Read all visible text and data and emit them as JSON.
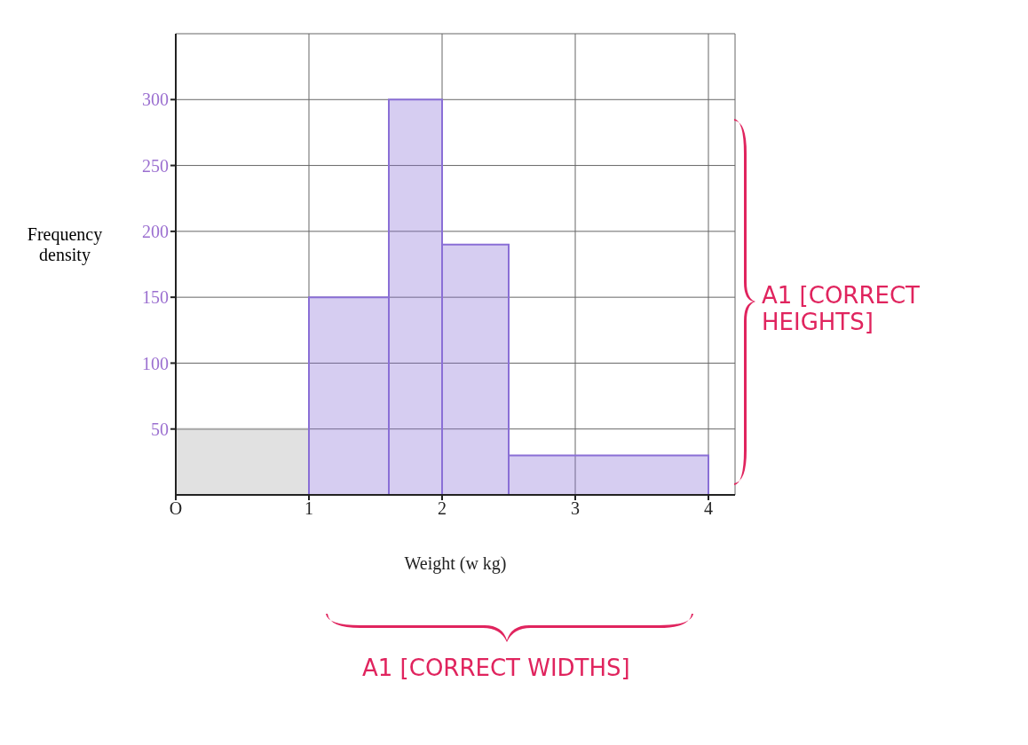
{
  "chart_data": {
    "type": "histogram",
    "xlabel": "Weight (w kg)",
    "ylabel": "Frequency density",
    "bins": [
      0,
      1,
      1.6,
      2,
      2.5,
      4
    ],
    "values": [
      50,
      150,
      300,
      190,
      30
    ],
    "colors": [
      "#a9a9a9",
      "#8a6fd6",
      "#8a6fd6",
      "#8a6fd6",
      "#8a6fd6"
    ],
    "xlim": [
      0,
      4.2
    ],
    "xticks": [
      {
        "value": 0,
        "label": "O"
      },
      1,
      2,
      3,
      4
    ],
    "ylim": [
      0,
      350
    ],
    "yticks": [
      50,
      100,
      150,
      200,
      250,
      300
    ],
    "grid": true,
    "annotations": [
      "A1 [CORRECT HEIGHTS]",
      "A1 [CORRECT WIDTHS]"
    ]
  }
}
